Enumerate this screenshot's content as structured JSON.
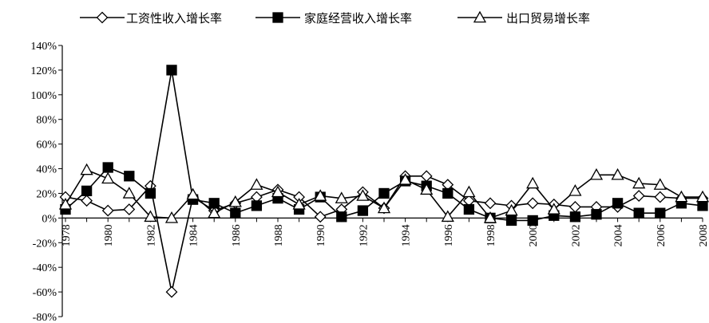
{
  "chart_data": {
    "type": "line",
    "title": "",
    "xlabel": "",
    "ylabel": "",
    "legend_position": "top-center",
    "grid": false,
    "ylim": [
      -0.8,
      1.4
    ],
    "yticks": [
      -0.8,
      -0.6,
      -0.4,
      -0.2,
      0,
      0.2,
      0.4,
      0.6,
      0.8,
      1.0,
      1.2,
      1.4
    ],
    "ytick_labels": [
      "-80%",
      "-60%",
      "-40%",
      "-20%",
      "0%",
      "20%",
      "40%",
      "60%",
      "80%",
      "100%",
      "120%",
      "140%"
    ],
    "x": [
      1978,
      1979,
      1980,
      1981,
      1982,
      1983,
      1984,
      1985,
      1986,
      1987,
      1988,
      1989,
      1990,
      1991,
      1992,
      1993,
      1994,
      1995,
      1996,
      1997,
      1998,
      1999,
      2000,
      2001,
      2002,
      2003,
      2004,
      2005,
      2006,
      2007,
      2008
    ],
    "xtick_labels": [
      "1978",
      "1980",
      "1982",
      "1984",
      "1986",
      "1988",
      "1990",
      "1992",
      "1994",
      "1996",
      "1998",
      "2000",
      "2002",
      "2004",
      "2006",
      "2008"
    ],
    "series": [
      {
        "name": "工资性收入增长率",
        "marker": "diamond",
        "values": [
          0.17,
          0.14,
          0.06,
          0.07,
          0.26,
          -0.6,
          0.17,
          0.06,
          0.12,
          0.17,
          0.23,
          0.17,
          0.01,
          0.07,
          0.21,
          0.08,
          0.34,
          0.34,
          0.27,
          0.14,
          0.12,
          0.1,
          0.12,
          0.11,
          0.09,
          0.09,
          0.09,
          0.18,
          0.17,
          0.16,
          0.16
        ]
      },
      {
        "name": "家庭经营收入增长率",
        "marker": "square",
        "values": [
          0.07,
          0.22,
          0.41,
          0.34,
          0.2,
          1.2,
          0.15,
          0.12,
          0.04,
          0.1,
          0.16,
          0.07,
          0.17,
          0.01,
          0.06,
          0.2,
          0.3,
          0.26,
          0.2,
          0.07,
          0.0,
          -0.02,
          -0.02,
          0.02,
          0.01,
          0.03,
          0.12,
          0.04,
          0.04,
          0.12,
          0.1
        ]
      },
      {
        "name": "出口贸易增长率",
        "marker": "triangle",
        "values": [
          0.11,
          0.39,
          0.32,
          0.2,
          0.01,
          0.0,
          0.19,
          0.04,
          0.13,
          0.27,
          0.21,
          0.11,
          0.18,
          0.16,
          0.18,
          0.08,
          0.31,
          0.23,
          0.01,
          0.21,
          0.0,
          0.06,
          0.28,
          0.07,
          0.22,
          0.35,
          0.35,
          0.28,
          0.27,
          0.17,
          0.17
        ]
      }
    ]
  }
}
